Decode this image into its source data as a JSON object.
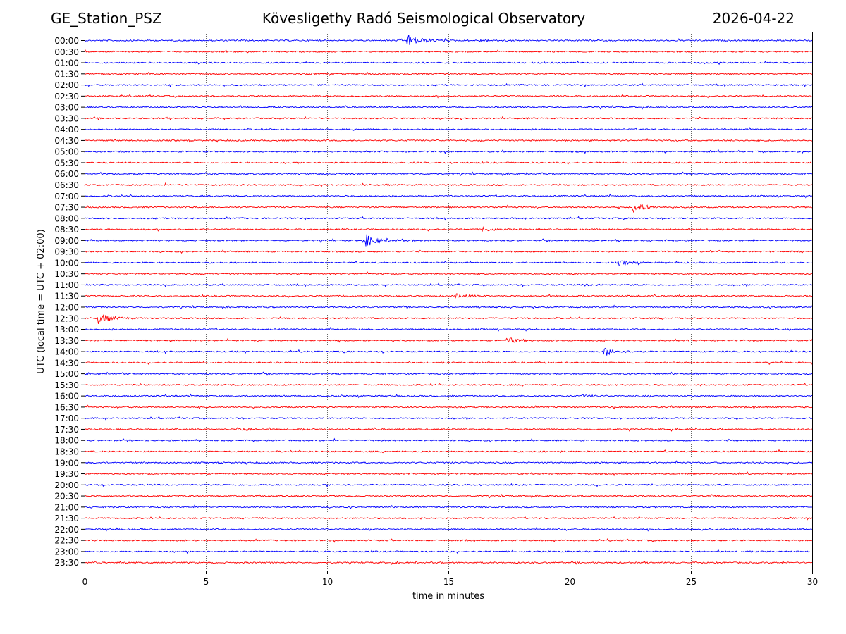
{
  "header": {
    "station": "GE_Station_PSZ",
    "title": "Kövesligethy Radó Seismological Observatory",
    "date": "2026-04-22"
  },
  "chart_data": {
    "type": "line",
    "title": "Kövesligethy Radó Seismological Observatory",
    "xlabel": "time in minutes",
    "ylabel": "UTC (local time = UTC + 02:00)",
    "xlim": [
      0,
      30
    ],
    "xticks": [
      0,
      5,
      10,
      15,
      20,
      25,
      30
    ],
    "grid": "vertical dotted at x ticks",
    "trace_colors": [
      "#0000ff",
      "#ff0000"
    ],
    "row_labels": [
      "00:00",
      "00:30",
      "01:00",
      "01:30",
      "02:00",
      "02:30",
      "03:00",
      "03:30",
      "04:00",
      "04:30",
      "05:00",
      "05:30",
      "06:00",
      "06:30",
      "07:00",
      "07:30",
      "08:00",
      "08:30",
      "09:00",
      "09:30",
      "10:00",
      "10:30",
      "11:00",
      "11:30",
      "12:00",
      "12:30",
      "13:00",
      "13:30",
      "14:00",
      "14:30",
      "15:00",
      "15:30",
      "16:00",
      "16:30",
      "17:00",
      "17:30",
      "18:00",
      "18:30",
      "19:00",
      "19:30",
      "20:00",
      "20:30",
      "21:00",
      "21:30",
      "22:00",
      "22:30",
      "23:00",
      "23:30"
    ],
    "events": [
      {
        "row": "00:00",
        "start_min": 13.3,
        "amplitude": 1.0
      },
      {
        "row": "00:00",
        "start_min": 16.3,
        "amplitude": 0.18
      },
      {
        "row": "07:30",
        "start_min": 22.6,
        "amplitude": 0.8
      },
      {
        "row": "08:30",
        "start_min": 16.4,
        "amplitude": 0.3
      },
      {
        "row": "09:00",
        "start_min": 11.6,
        "amplitude": 0.95
      },
      {
        "row": "10:00",
        "start_min": 22.0,
        "amplitude": 0.35
      },
      {
        "row": "11:00",
        "start_min": 20.5,
        "amplitude": 0.15
      },
      {
        "row": "11:30",
        "start_min": 15.3,
        "amplitude": 0.28
      },
      {
        "row": "12:30",
        "start_min": 0.55,
        "amplitude": 0.85
      },
      {
        "row": "13:30",
        "start_min": 17.4,
        "amplitude": 0.45
      },
      {
        "row": "14:00",
        "start_min": 21.4,
        "amplitude": 0.6
      },
      {
        "row": "16:00",
        "start_min": 20.5,
        "amplitude": 0.15
      },
      {
        "row": "17:30",
        "start_min": 6.3,
        "amplitude": 0.25
      }
    ]
  }
}
